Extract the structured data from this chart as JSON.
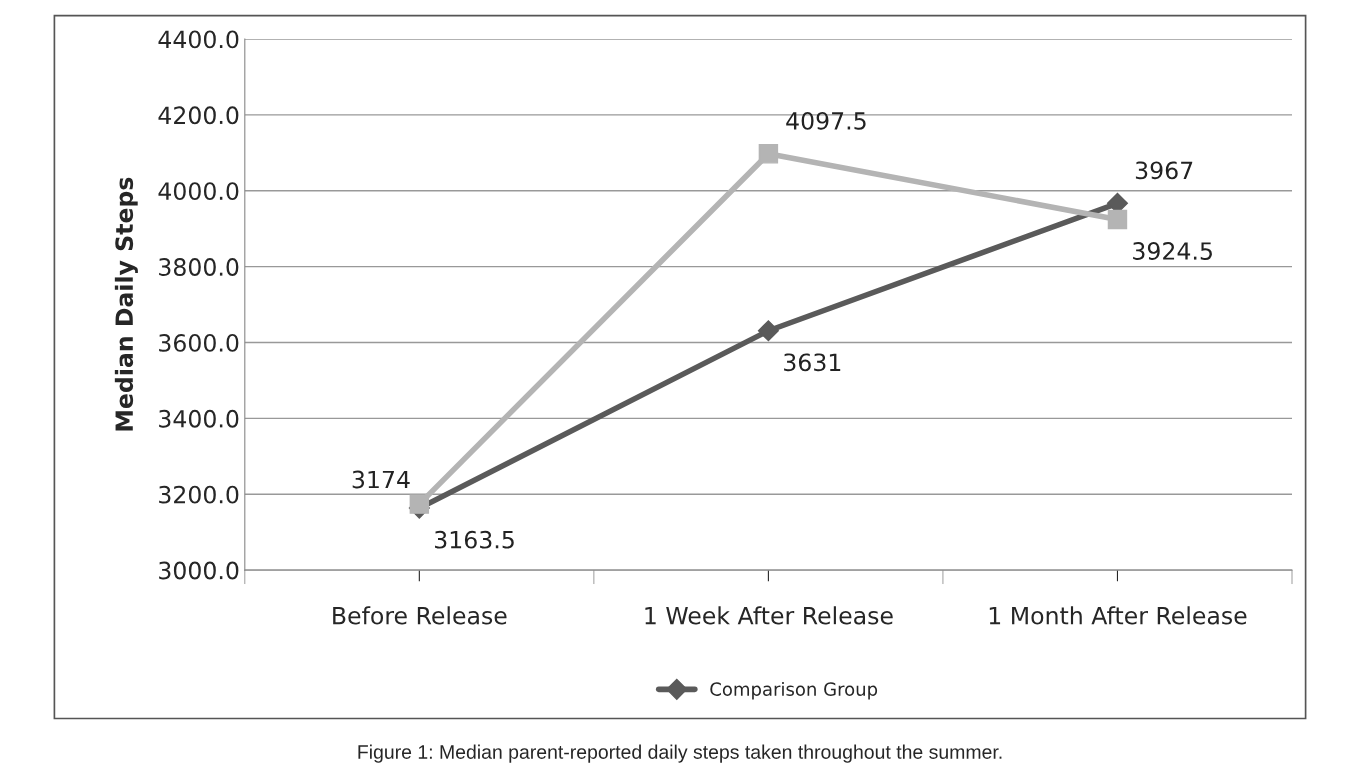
{
  "chart_data": {
    "type": "line",
    "ylabel": "Median Daily Steps",
    "categories": [
      "Before Release",
      "1 Week After Release",
      "1 Month After Release"
    ],
    "series": [
      {
        "name": "Comparison Group",
        "color": "#5a5a5a",
        "marker": "diamond",
        "values": [
          3163.5,
          3631,
          3967
        ]
      },
      {
        "color": "#b4b4b4",
        "marker": "square",
        "values": [
          3174,
          4097.5,
          3924.5
        ]
      }
    ],
    "ylim": [
      3000,
      4400
    ],
    "yticks": [
      {
        "value": 3000,
        "label": "3000.0"
      },
      {
        "value": 3200,
        "label": "3200.0"
      },
      {
        "value": 3400,
        "label": "3400.0"
      },
      {
        "value": 3600,
        "label": "3600.0"
      },
      {
        "value": 3800,
        "label": "3800.0"
      },
      {
        "value": 4000,
        "label": "4000.0"
      },
      {
        "value": 4200,
        "label": "4200.0"
      },
      {
        "value": 4400,
        "label": "4400.0"
      }
    ],
    "grid": "y",
    "legend": "bottom",
    "data_labels": true,
    "annotations": [
      "Figure 1: Median parent-reported daily steps taken throughout the summer."
    ]
  }
}
